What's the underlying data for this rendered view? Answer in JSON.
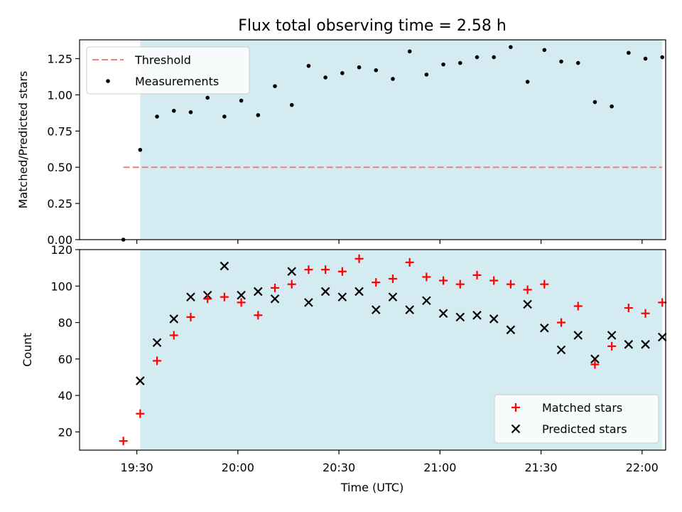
{
  "figure": {
    "title": "Flux total observing time = 2.58 h",
    "xlabel": "Time (UTC)",
    "x_tick_labels": [
      "19:30",
      "20:00",
      "20:30",
      "21:00",
      "21:30",
      "22:00"
    ]
  },
  "colors": {
    "shade": "#d4ebf1",
    "threshold": "#f07f7f",
    "matched": "#ff0000",
    "predicted": "#000000",
    "measurement": "#000000"
  },
  "chart_data": [
    {
      "type": "scatter",
      "name": "ratio-panel",
      "ylabel": "Matched/Predicted stars",
      "ylim": [
        0.0,
        1.38
      ],
      "xlim_minutes": [
        1153,
        1327
      ],
      "y_ticks": [
        "0.00",
        "0.25",
        "0.50",
        "0.75",
        "1.00",
        "1.25"
      ],
      "y_tick_values": [
        0,
        0.25,
        0.5,
        0.75,
        1.0,
        1.25
      ],
      "shaded_span_minutes": [
        1171,
        1326
      ],
      "threshold": {
        "label": "Threshold",
        "value": 0.5,
        "x_range_minutes": [
          1166,
          1326
        ]
      },
      "measurements_label": "Measurements",
      "x_minutes": [
        1166,
        1171,
        1176,
        1181,
        1186,
        1191,
        1196,
        1201,
        1206,
        1211,
        1216,
        1221,
        1226,
        1231,
        1236,
        1241,
        1246,
        1251,
        1256,
        1261,
        1266,
        1271,
        1276,
        1281,
        1286,
        1291,
        1296,
        1301,
        1306,
        1311,
        1316,
        1321,
        1326
      ],
      "values": [
        0.0,
        0.62,
        0.85,
        0.89,
        0.88,
        0.98,
        0.85,
        0.96,
        0.86,
        1.06,
        0.93,
        1.2,
        1.12,
        1.15,
        1.19,
        1.17,
        1.11,
        1.3,
        1.14,
        1.21,
        1.22,
        1.26,
        1.26,
        1.33,
        1.09,
        1.31,
        1.23,
        1.22,
        0.95,
        0.92,
        1.29,
        1.25,
        1.26
      ]
    },
    {
      "type": "scatter",
      "name": "count-panel",
      "ylabel": "Count",
      "ylim": [
        10,
        120
      ],
      "xlim_minutes": [
        1153,
        1327
      ],
      "y_ticks": [
        "20",
        "40",
        "60",
        "80",
        "100",
        "120"
      ],
      "y_tick_values": [
        20,
        40,
        60,
        80,
        100,
        120
      ],
      "shaded_span_minutes": [
        1171,
        1326
      ],
      "legend": [
        "Matched stars",
        "Predicted stars"
      ],
      "series": [
        {
          "name": "Matched stars",
          "x_minutes": [
            1166,
            1171,
            1176,
            1181,
            1186,
            1191,
            1196,
            1201,
            1206,
            1211,
            1216,
            1221,
            1226,
            1231,
            1236,
            1241,
            1246,
            1251,
            1256,
            1261,
            1266,
            1271,
            1276,
            1281,
            1286,
            1291,
            1296,
            1301,
            1306,
            1311,
            1316,
            1321,
            1326
          ],
          "values": [
            15,
            30,
            59,
            73,
            83,
            93,
            94,
            91,
            84,
            99,
            101,
            109,
            109,
            108,
            115,
            102,
            104,
            113,
            105,
            103,
            101,
            106,
            103,
            101,
            98,
            101,
            80,
            89,
            57,
            67,
            88,
            85,
            91
          ]
        },
        {
          "name": "Predicted stars",
          "x_minutes": [
            1171,
            1176,
            1181,
            1186,
            1191,
            1196,
            1201,
            1206,
            1211,
            1216,
            1221,
            1226,
            1231,
            1236,
            1241,
            1246,
            1251,
            1256,
            1261,
            1266,
            1271,
            1276,
            1281,
            1286,
            1291,
            1296,
            1301,
            1306,
            1311,
            1316,
            1321,
            1326
          ],
          "values": [
            48,
            69,
            82,
            94,
            95,
            111,
            95,
            97,
            93,
            108,
            91,
            97,
            94,
            97,
            87,
            94,
            87,
            92,
            85,
            83,
            84,
            82,
            76,
            90,
            77,
            65,
            73,
            60,
            73,
            68,
            68,
            72
          ]
        }
      ]
    }
  ]
}
